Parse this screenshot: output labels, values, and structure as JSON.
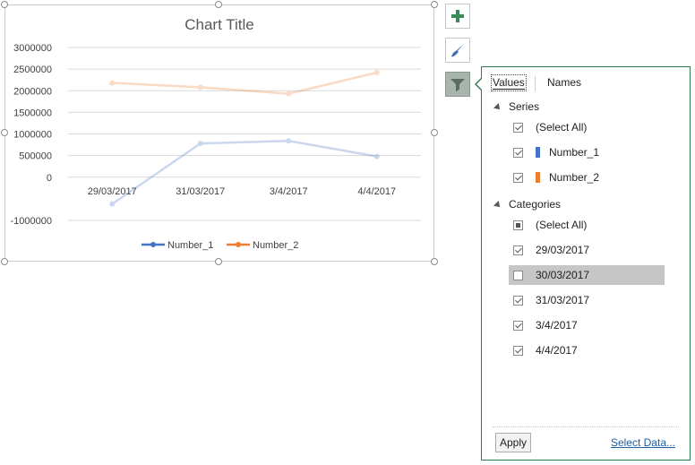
{
  "chart_data": {
    "type": "line",
    "title": "Chart Title",
    "categories": [
      "29/03/2017",
      "31/03/2017",
      "3/4/2017",
      "4/4/2017"
    ],
    "series": [
      {
        "name": "Number_1",
        "color": "#4472c4",
        "values": [
          -620000,
          780000,
          840000,
          480000
        ]
      },
      {
        "name": "Number_2",
        "color": "#ed7d31",
        "values": [
          2180000,
          2080000,
          1930000,
          2420000
        ]
      }
    ],
    "ylim": [
      -1000000,
      3000000
    ],
    "yticks": [
      "3000000",
      "2500000",
      "2000000",
      "1500000",
      "1000000",
      "500000",
      "0",
      "-1000000"
    ],
    "grid": true,
    "legend": "bottom",
    "series_faded": true
  },
  "toolbar": {
    "add_element_icon": "plus-icon",
    "style_icon": "paintbrush-icon",
    "filter_icon": "funnel-icon"
  },
  "filter_panel": {
    "tabs": [
      "Values",
      "Names"
    ],
    "series_heading": "Series",
    "series_items": [
      {
        "label": "(Select All)",
        "state": "checked"
      },
      {
        "label": "Number_1",
        "state": "checked",
        "color": "#4472c4"
      },
      {
        "label": "Number_2",
        "state": "checked",
        "color": "#ed7d31"
      }
    ],
    "categories_heading": "Categories",
    "category_items": [
      {
        "label": "(Select All)",
        "state": "partial"
      },
      {
        "label": "29/03/2017",
        "state": "checked"
      },
      {
        "label": "30/03/2017",
        "state": "unchecked",
        "hover": true
      },
      {
        "label": "31/03/2017",
        "state": "checked"
      },
      {
        "label": "3/4/2017",
        "state": "checked"
      },
      {
        "label": "4/4/2017",
        "state": "checked"
      }
    ],
    "apply_label": "Apply",
    "select_data_label": "Select Data..."
  }
}
